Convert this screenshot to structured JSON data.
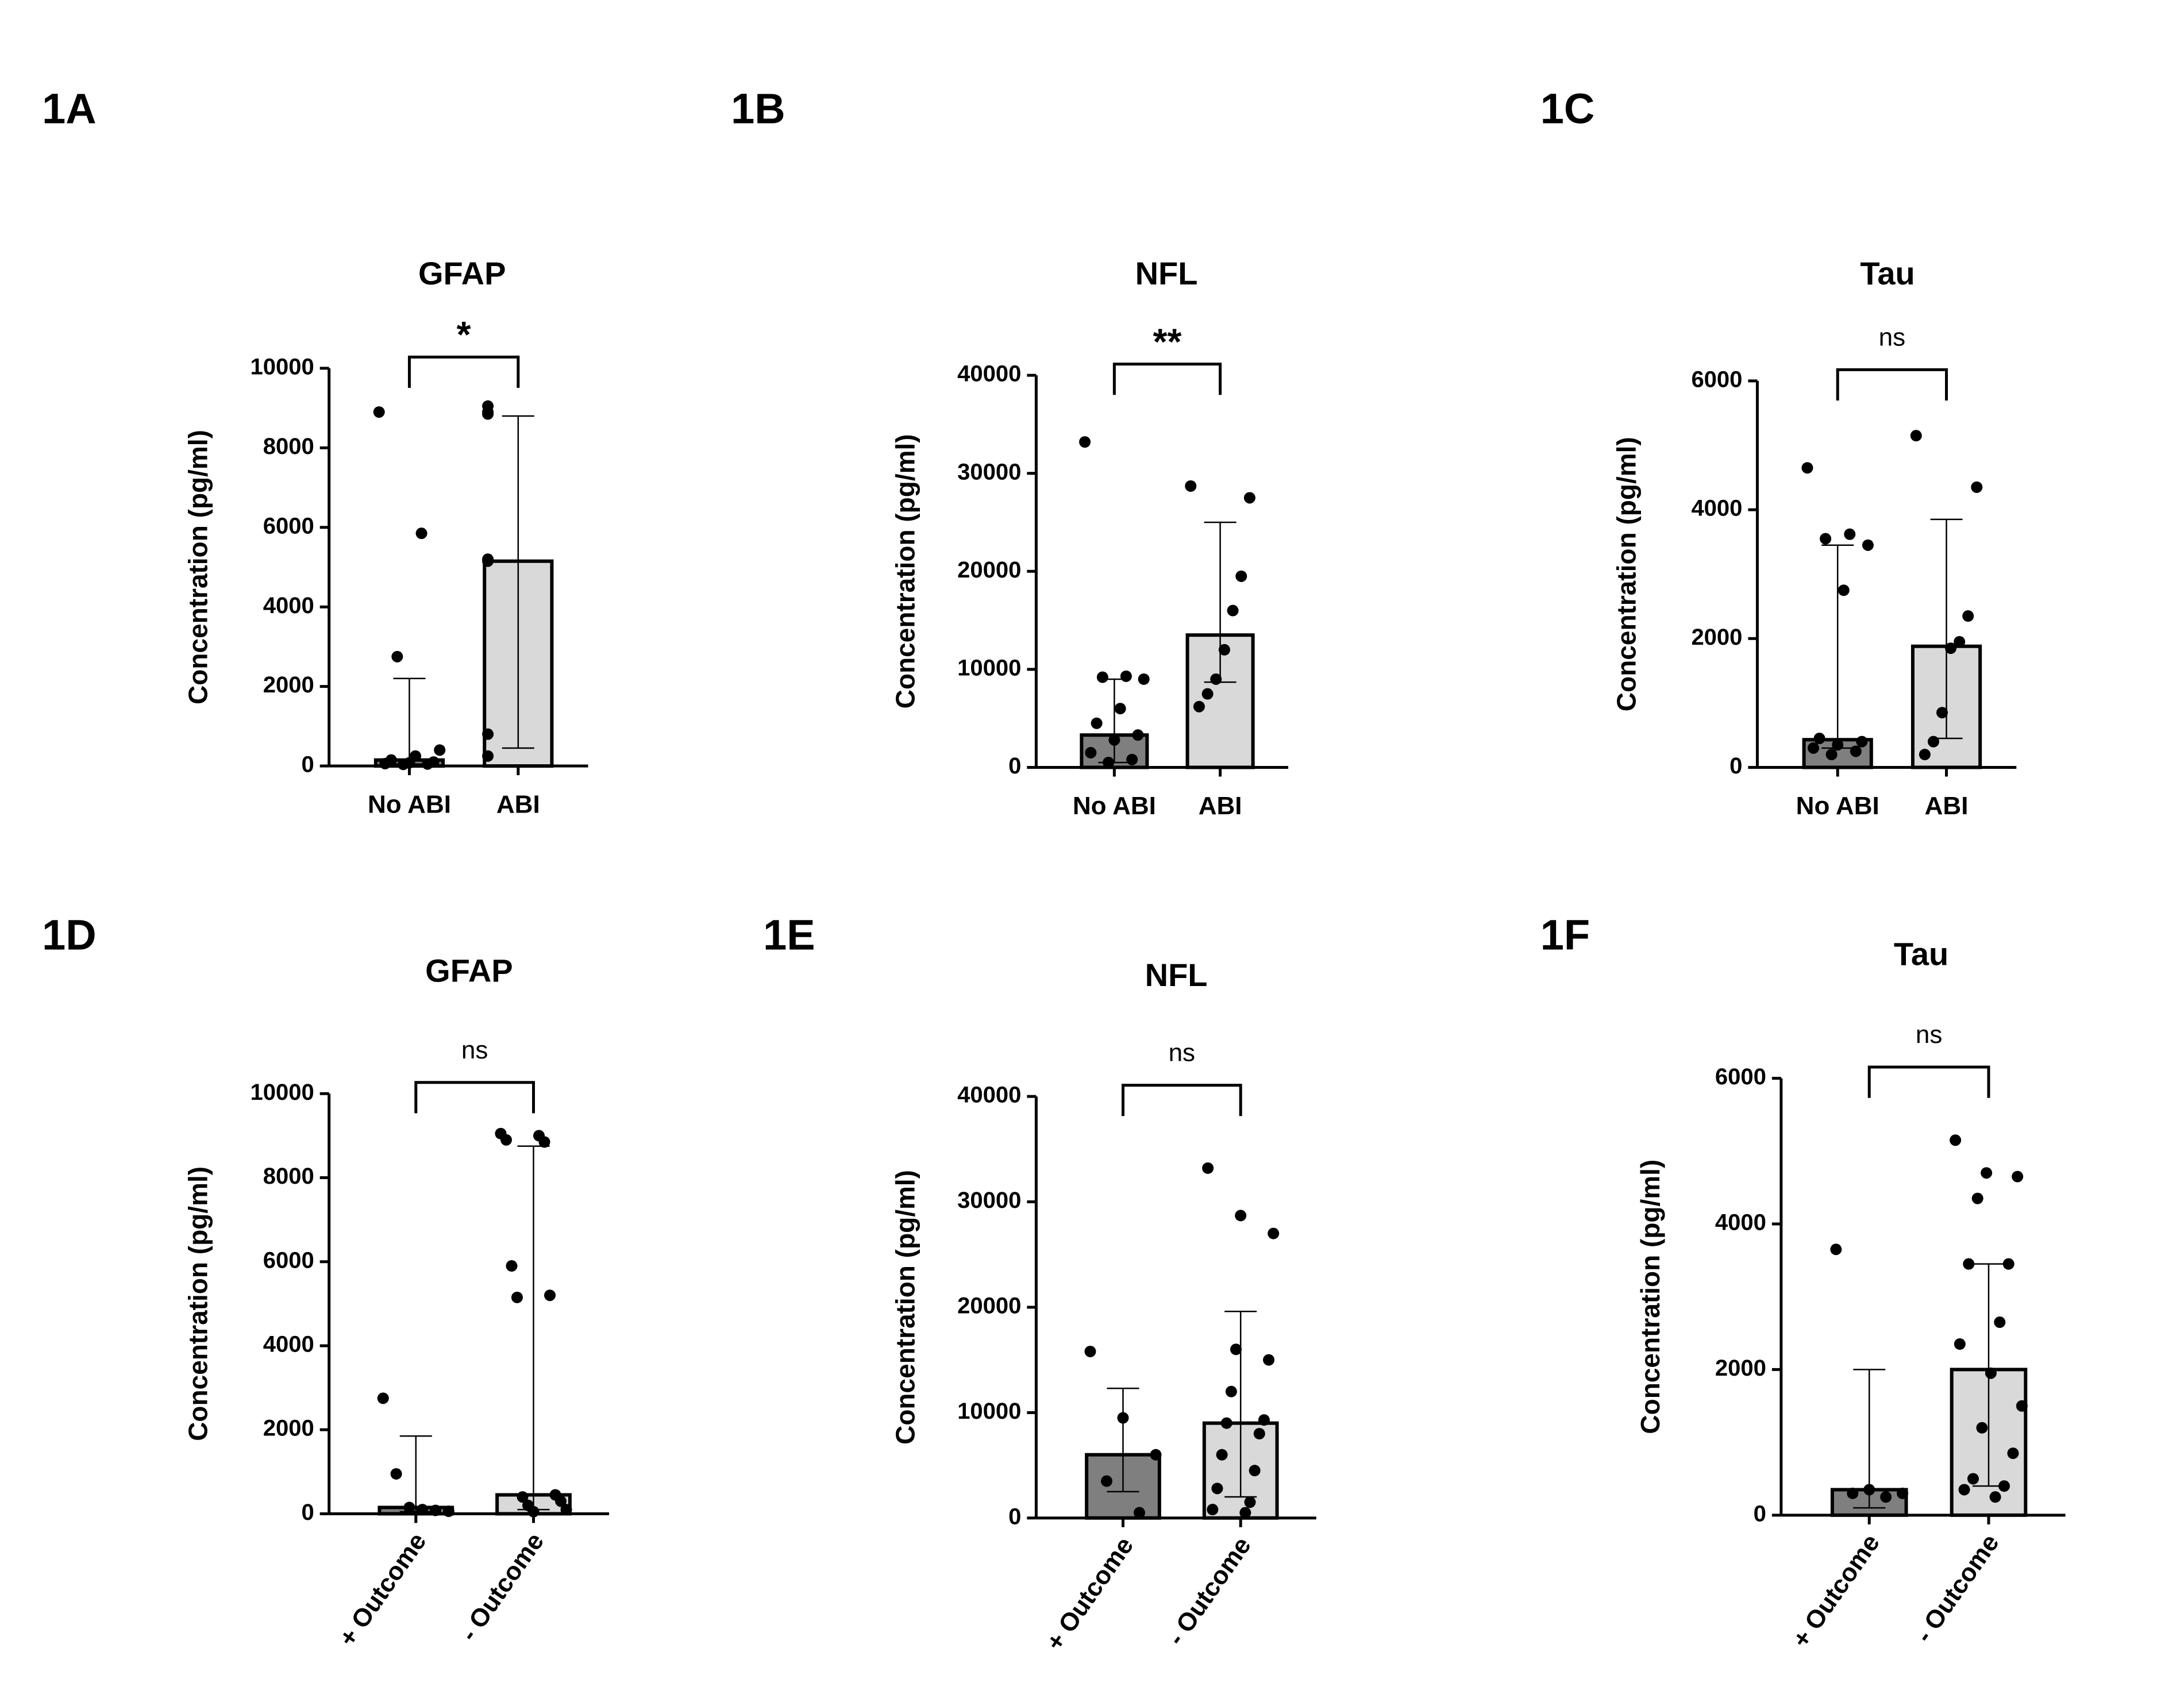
{
  "chart_data": [
    {
      "type": "bar",
      "panel": "1A",
      "title": "GFAP",
      "ylabel": "Concentration (pg/ml)",
      "significance": "*",
      "categories": [
        "No ABI",
        "ABI"
      ],
      "colors": [
        "#7f7f7f",
        "#d9d9d9"
      ],
      "values": [
        150,
        5150
      ],
      "upper": [
        2200,
        8800
      ],
      "lower": [
        50,
        450
      ],
      "points": [
        [
          8900,
          5850,
          2750,
          400,
          250,
          150,
          100,
          80,
          60,
          50,
          40
        ],
        [
          9050,
          8900,
          8850,
          5200,
          5150,
          800,
          250
        ]
      ],
      "ylim": [
        0,
        10000
      ],
      "yticks": [
        0,
        2000,
        4000,
        6000,
        8000,
        10000
      ]
    },
    {
      "type": "bar",
      "panel": "1B",
      "title": "NFL",
      "ylabel": "Concentration (pg/ml)",
      "significance": "**",
      "categories": [
        "No ABI",
        "ABI"
      ],
      "colors": [
        "#7f7f7f",
        "#d9d9d9"
      ],
      "values": [
        3300,
        13500
      ],
      "upper": [
        9000,
        25000
      ],
      "lower": [
        500,
        8700
      ],
      "points": [
        [
          33200,
          9300,
          9200,
          9000,
          6000,
          4500,
          3300,
          2800,
          1500,
          800,
          500
        ],
        [
          28700,
          27500,
          19500,
          16000,
          12000,
          9000,
          7500,
          6200
        ]
      ],
      "ylim": [
        0,
        40000
      ],
      "yticks": [
        0,
        10000,
        20000,
        30000,
        40000
      ]
    },
    {
      "type": "bar",
      "panel": "1C",
      "title": "Tau",
      "ylabel": "Concentration (pg/ml)",
      "significance": "ns",
      "categories": [
        "No ABI",
        "ABI"
      ],
      "colors": [
        "#7f7f7f",
        "#d9d9d9"
      ],
      "values": [
        430,
        1880
      ],
      "upper": [
        3450,
        3850
      ],
      "lower": [
        300,
        450
      ],
      "points": [
        [
          4650,
          3620,
          3550,
          3450,
          2750,
          450,
          400,
          350,
          300,
          250,
          200
        ],
        [
          5150,
          4350,
          2350,
          1950,
          1850,
          850,
          400,
          200
        ]
      ],
      "ylim": [
        0,
        6000
      ],
      "yticks": [
        0,
        2000,
        4000,
        6000
      ]
    },
    {
      "type": "bar",
      "panel": "1D",
      "title": "GFAP",
      "ylabel": "Concentration (pg/ml)",
      "significance": "ns",
      "categories": [
        "+ Outcome",
        "- Outcome"
      ],
      "colors": [
        "#7f7f7f",
        "#d9d9d9"
      ],
      "values": [
        150,
        450
      ],
      "upper": [
        1850,
        8750
      ],
      "lower": [
        50,
        100
      ],
      "points": [
        [
          2750,
          950,
          150,
          100,
          80,
          60
        ],
        [
          9050,
          9000,
          8900,
          8850,
          5900,
          5200,
          5150,
          450,
          400,
          300,
          200,
          100,
          50
        ]
      ],
      "ylim": [
        0,
        10000
      ],
      "yticks": [
        0,
        2000,
        4000,
        6000,
        8000,
        10000
      ]
    },
    {
      "type": "bar",
      "panel": "1E",
      "title": "NFL",
      "ylabel": "Concentration (pg/ml)",
      "significance": "ns",
      "categories": [
        "+ Outcome",
        "- Outcome"
      ],
      "colors": [
        "#7f7f7f",
        "#d9d9d9"
      ],
      "values": [
        6000,
        9000
      ],
      "upper": [
        12300,
        19600
      ],
      "lower": [
        2500,
        2000
      ],
      "points": [
        [
          15800,
          9500,
          6000,
          3500,
          500
        ],
        [
          33200,
          28700,
          27000,
          16000,
          15000,
          12000,
          9300,
          9000,
          8000,
          6000,
          4500,
          2800,
          1500,
          800,
          500
        ]
      ],
      "ylim": [
        0,
        40000
      ],
      "yticks": [
        0,
        10000,
        20000,
        30000,
        40000
      ]
    },
    {
      "type": "bar",
      "panel": "1F",
      "title": "Tau",
      "ylabel": "Concentration (pg/ml)",
      "significance": "ns",
      "categories": [
        "+ Outcome",
        "- Outcome"
      ],
      "colors": [
        "#7f7f7f",
        "#d9d9d9"
      ],
      "values": [
        350,
        2000
      ],
      "upper": [
        2000,
        3450
      ],
      "lower": [
        100,
        400
      ],
      "points": [
        [
          3650,
          350,
          300,
          300,
          250
        ],
        [
          5150,
          4700,
          4650,
          4350,
          3450,
          3450,
          2650,
          2350,
          1950,
          1500,
          1200,
          850,
          500,
          400,
          350,
          250
        ]
      ],
      "ylim": [
        0,
        6000
      ],
      "yticks": [
        0,
        2000,
        4000,
        6000
      ]
    }
  ]
}
